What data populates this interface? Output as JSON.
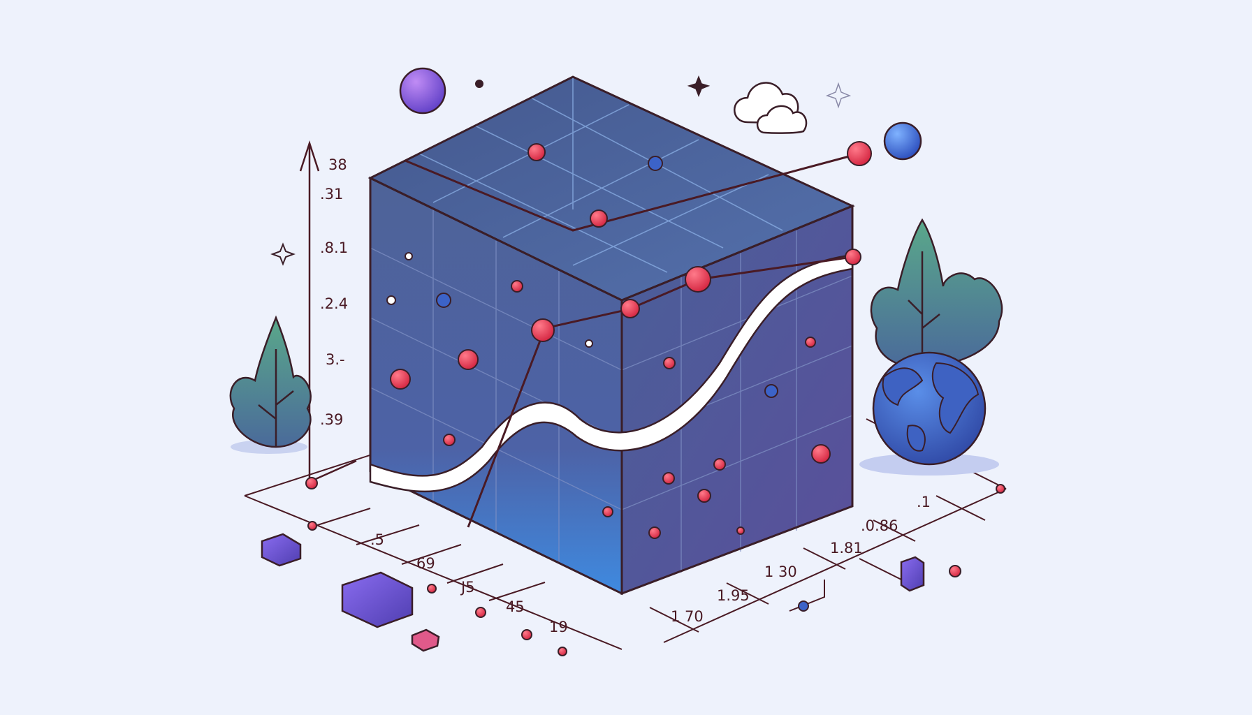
{
  "illustration": {
    "y_axis_labels": [
      "38",
      ".31",
      ".8.1",
      ".2.4",
      "3.-",
      ".39"
    ],
    "x_axis_labels_left": [
      ".5",
      "69",
      "J5",
      "45",
      "19"
    ],
    "x_axis_labels_right": [
      "1 70",
      "1.95",
      "1 30",
      "1.81",
      ".0.86",
      ".1"
    ]
  },
  "palette": {
    "background": "#eef2fc",
    "cube_face": "#4a5f9a",
    "cube_top": "#3d5590",
    "accent_red": "#e0304a",
    "accent_blue": "#3c63c8",
    "accent_purple": "#7b4fd6",
    "outline": "#3a1e28",
    "tree_green": "#4f8a6e"
  }
}
